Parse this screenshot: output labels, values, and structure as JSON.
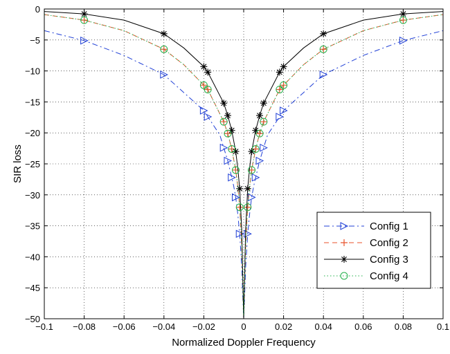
{
  "chart_data": {
    "type": "line",
    "title": "",
    "xlabel": "Normalized Doppler Frequency",
    "ylabel": "SIR loss",
    "xlim": [
      -0.1,
      0.1
    ],
    "ylim": [
      -50,
      0
    ],
    "xticks": [
      -0.1,
      -0.08,
      -0.06,
      -0.04,
      -0.02,
      0,
      0.02,
      0.04,
      0.06,
      0.08,
      0.1
    ],
    "xtick_labels": [
      "−0.1",
      "−0.08",
      "−0.06",
      "−0.04",
      "−0.02",
      "0",
      "0.02",
      "0.04",
      "0.06",
      "0.08",
      "0.1"
    ],
    "yticks": [
      -50,
      -45,
      -40,
      -35,
      -30,
      -25,
      -20,
      -15,
      -10,
      -5,
      0
    ],
    "ytick_labels": [
      "−50",
      "−45",
      "−40",
      "−35",
      "−30",
      "−25",
      "−20",
      "−15",
      "−10",
      "−5",
      "0"
    ],
    "grid": true,
    "legend_position": "bottom-right",
    "series": [
      {
        "name": "Config 1",
        "color": "#1f3fd6",
        "line_style": "dash-dot",
        "marker": "triangle-right",
        "x": [
          -0.1,
          -0.08,
          -0.06,
          -0.04,
          -0.03,
          -0.02,
          -0.018,
          -0.012,
          -0.01,
          -0.008,
          -0.006,
          -0.005,
          -0.004,
          -0.003,
          -0.002,
          -0.001,
          -0.0005,
          0,
          0.0005,
          0.001,
          0.002,
          0.003,
          0.004,
          0.005,
          0.006,
          0.008,
          0.01,
          0.012,
          0.018,
          0.02,
          0.03,
          0.04,
          0.06,
          0.08,
          0.1
        ],
        "y": [
          -3.5,
          -5.1,
          -7.5,
          -10.6,
          -13.5,
          -16.4,
          -17.4,
          -20.3,
          -22.4,
          -24.5,
          -27.2,
          -28.6,
          -30.4,
          -33,
          -36.3,
          -41.5,
          -46,
          -50,
          -46,
          -41.5,
          -36.3,
          -33,
          -30.4,
          -28.6,
          -27.2,
          -24.5,
          -22.4,
          -20.3,
          -17.4,
          -16.4,
          -13.5,
          -10.6,
          -7.5,
          -5.1,
          -3.5
        ],
        "marker_x": [
          -0.08,
          -0.04,
          -0.02,
          -0.018,
          -0.01,
          -0.008,
          -0.006,
          -0.004,
          -0.002,
          0.002,
          0.004,
          0.006,
          0.008,
          0.01,
          0.018,
          0.02,
          0.04,
          0.08
        ],
        "marker_y": [
          -5.1,
          -10.6,
          -16.4,
          -17.4,
          -22.4,
          -24.5,
          -27.2,
          -30.4,
          -36.3,
          -36.3,
          -30.4,
          -27.2,
          -24.5,
          -22.4,
          -17.4,
          -16.4,
          -10.6,
          -5.1
        ]
      },
      {
        "name": "Config 2",
        "color": "#e8522a",
        "line_style": "dashed",
        "marker": "plus",
        "x": [
          -0.1,
          -0.08,
          -0.06,
          -0.04,
          -0.03,
          -0.02,
          -0.018,
          -0.01,
          -0.008,
          -0.006,
          -0.004,
          -0.003,
          -0.002,
          -0.001,
          -0.0005,
          0,
          0.0005,
          0.001,
          0.002,
          0.003,
          0.004,
          0.006,
          0.008,
          0.01,
          0.018,
          0.02,
          0.03,
          0.04,
          0.06,
          0.08,
          0.1
        ],
        "y": [
          -0.9,
          -1.8,
          -3.5,
          -6.5,
          -9,
          -12.3,
          -13,
          -18.2,
          -20.1,
          -22.6,
          -26,
          -28.5,
          -32,
          -38,
          -44,
          -50,
          -44,
          -38,
          -32,
          -28.5,
          -26,
          -22.6,
          -20.1,
          -18.2,
          -13,
          -12.3,
          -9,
          -6.5,
          -3.5,
          -1.8,
          -0.9
        ],
        "marker_x": [
          -0.08,
          -0.04,
          -0.02,
          -0.018,
          -0.01,
          -0.008,
          -0.006,
          -0.004,
          -0.002,
          0.002,
          0.004,
          0.006,
          0.008,
          0.01,
          0.018,
          0.02,
          0.04,
          0.08
        ],
        "marker_y": [
          -1.8,
          -6.5,
          -12.3,
          -13,
          -18.2,
          -20.1,
          -22.6,
          -26,
          -32,
          -32,
          -26,
          -22.6,
          -20.1,
          -18.2,
          -13,
          -12.3,
          -6.5,
          -1.8
        ]
      },
      {
        "name": "Config 3",
        "color": "#000000",
        "line_style": "solid",
        "marker": "asterisk",
        "x": [
          -0.1,
          -0.08,
          -0.06,
          -0.04,
          -0.03,
          -0.02,
          -0.018,
          -0.01,
          -0.008,
          -0.006,
          -0.004,
          -0.003,
          -0.002,
          -0.001,
          -0.0005,
          0,
          0.0005,
          0.001,
          0.002,
          0.003,
          0.004,
          0.006,
          0.008,
          0.01,
          0.018,
          0.02,
          0.03,
          0.04,
          0.06,
          0.08,
          0.1
        ],
        "y": [
          -0.4,
          -0.8,
          -1.8,
          -4,
          -6.3,
          -9.3,
          -10.2,
          -15.2,
          -17.2,
          -19.6,
          -23,
          -25.6,
          -29,
          -35.5,
          -42.5,
          -50,
          -42.5,
          -35.5,
          -29,
          -25.6,
          -23,
          -19.6,
          -17.2,
          -15.2,
          -10.2,
          -9.3,
          -6.3,
          -4,
          -1.8,
          -0.8,
          -0.4
        ],
        "marker_x": [
          -0.08,
          -0.04,
          -0.02,
          -0.018,
          -0.01,
          -0.008,
          -0.006,
          -0.004,
          -0.002,
          0.002,
          0.004,
          0.006,
          0.008,
          0.01,
          0.018,
          0.02,
          0.04,
          0.08
        ],
        "marker_y": [
          -0.8,
          -4,
          -9.3,
          -10.2,
          -15.2,
          -17.2,
          -19.6,
          -23,
          -29,
          -29,
          -23,
          -19.6,
          -17.2,
          -15.2,
          -10.2,
          -9.3,
          -4,
          -0.8
        ]
      },
      {
        "name": "Config 4",
        "color": "#22b04a",
        "line_style": "dotted",
        "marker": "circle",
        "x": [
          -0.1,
          -0.08,
          -0.06,
          -0.04,
          -0.03,
          -0.02,
          -0.018,
          -0.01,
          -0.008,
          -0.006,
          -0.004,
          -0.003,
          -0.002,
          -0.001,
          -0.0005,
          0,
          0.0005,
          0.001,
          0.002,
          0.003,
          0.004,
          0.006,
          0.008,
          0.01,
          0.018,
          0.02,
          0.03,
          0.04,
          0.06,
          0.08,
          0.1
        ],
        "y": [
          -0.9,
          -1.8,
          -3.5,
          -6.5,
          -9,
          -12.3,
          -13,
          -18.2,
          -20.1,
          -22.6,
          -26,
          -28.5,
          -32,
          -38,
          -44,
          -50,
          -44,
          -38,
          -32,
          -28.5,
          -26,
          -22.6,
          -20.1,
          -18.2,
          -13,
          -12.3,
          -9,
          -6.5,
          -3.5,
          -1.8,
          -0.9
        ],
        "marker_x": [
          -0.08,
          -0.04,
          -0.02,
          -0.018,
          -0.01,
          -0.008,
          -0.006,
          -0.004,
          -0.002,
          0.002,
          0.004,
          0.006,
          0.008,
          0.01,
          0.018,
          0.02,
          0.04,
          0.08
        ],
        "marker_y": [
          -1.8,
          -6.5,
          -12.3,
          -13,
          -18.2,
          -20.1,
          -22.6,
          -26,
          -32,
          -32,
          -26,
          -22.6,
          -20.1,
          -18.2,
          -13,
          -12.3,
          -6.5,
          -1.8
        ]
      }
    ]
  }
}
